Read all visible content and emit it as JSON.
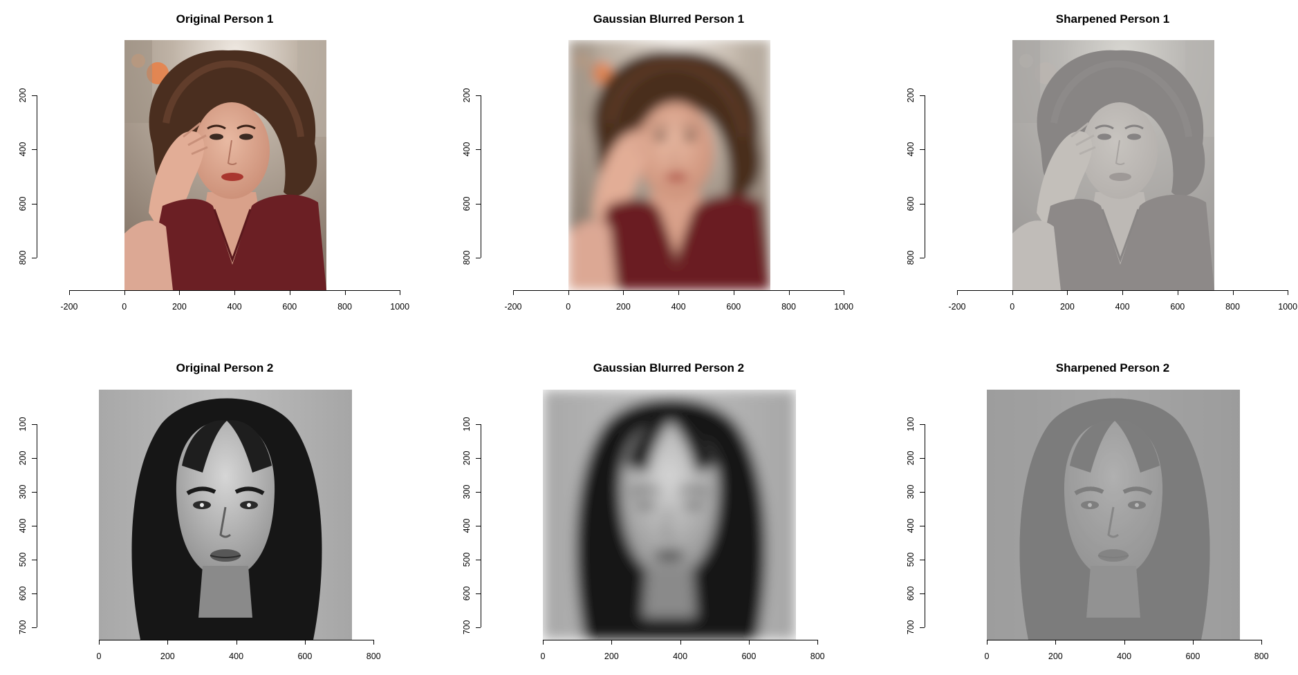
{
  "panels": [
    {
      "title": "Original Person 1",
      "x_ticks": [
        "-200",
        "0",
        "200",
        "400",
        "600",
        "800",
        "1000"
      ],
      "y_ticks": [
        "200",
        "400",
        "600",
        "800"
      ],
      "image": {
        "subject": "curly-haired woman in maroon v-neck top, hand at temple",
        "palette": "color",
        "effect": "original"
      }
    },
    {
      "title": "Gaussian Blurred Person 1",
      "x_ticks": [
        "-200",
        "0",
        "200",
        "400",
        "600",
        "800",
        "1000"
      ],
      "y_ticks": [
        "200",
        "400",
        "600",
        "800"
      ],
      "image": {
        "subject": "curly-haired woman in maroon v-neck top, hand at temple",
        "palette": "color",
        "effect": "gaussian-blur"
      }
    },
    {
      "title": "Sharpened Person 1",
      "x_ticks": [
        "-200",
        "0",
        "200",
        "400",
        "600",
        "800",
        "1000"
      ],
      "y_ticks": [
        "200",
        "400",
        "600",
        "800"
      ],
      "image": {
        "subject": "curly-haired woman in maroon v-neck top, hand at temple",
        "palette": "muted-gray",
        "effect": "sharpened"
      }
    },
    {
      "title": "Original Person 2",
      "x_ticks": [
        "0",
        "200",
        "400",
        "600",
        "800"
      ],
      "y_ticks": [
        "100",
        "200",
        "300",
        "400",
        "500",
        "600",
        "700"
      ],
      "image": {
        "subject": "long dark-haired woman, frontal portrait",
        "palette": "grayscale",
        "effect": "original"
      }
    },
    {
      "title": "Gaussian Blurred Person 2",
      "x_ticks": [
        "0",
        "200",
        "400",
        "600",
        "800"
      ],
      "y_ticks": [
        "100",
        "200",
        "300",
        "400",
        "500",
        "600",
        "700"
      ],
      "image": {
        "subject": "long dark-haired woman, frontal portrait",
        "palette": "grayscale",
        "effect": "gaussian-blur"
      }
    },
    {
      "title": "Sharpened Person 2",
      "x_ticks": [
        "0",
        "200",
        "400",
        "600",
        "800"
      ],
      "y_ticks": [
        "100",
        "200",
        "300",
        "400",
        "500",
        "600",
        "700"
      ],
      "image": {
        "subject": "long dark-haired woman, frontal portrait",
        "palette": "dark-gray",
        "effect": "sharpened"
      }
    }
  ]
}
